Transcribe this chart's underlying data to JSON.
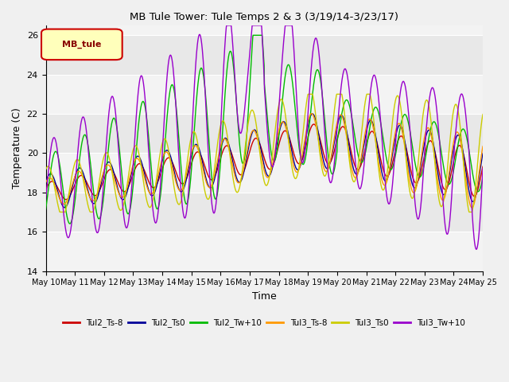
{
  "title": "MB Tule Tower: Tule Temps 2 & 3 (3/19/14-3/23/17)",
  "xlabel": "Time",
  "ylabel": "Temperature (C)",
  "ylim": [
    14,
    26.5
  ],
  "yticks": [
    14,
    16,
    18,
    20,
    22,
    24,
    26
  ],
  "legend_label": "MB_tule",
  "series_labels": [
    "Tul2_Ts-8",
    "Tul2_Ts0",
    "Tul2_Tw+10",
    "Tul3_Ts-8",
    "Tul3_Ts0",
    "Tul3_Tw+10"
  ],
  "series_colors": [
    "#cc0000",
    "#000099",
    "#00bb00",
    "#ff9900",
    "#cccc00",
    "#9900cc"
  ],
  "background_color": "#e8e8e8",
  "fig_color": "#f0f0f0",
  "grid_color": "#ffffff"
}
